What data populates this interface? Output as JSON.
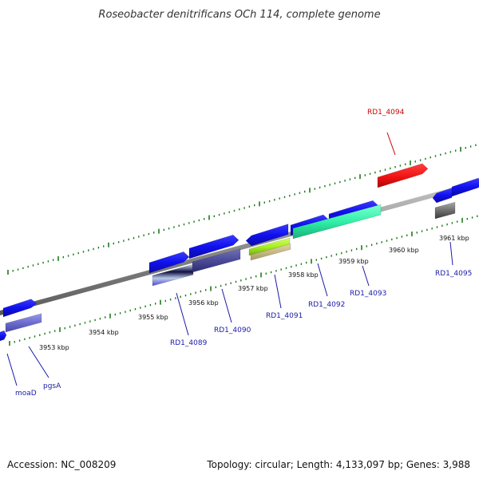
{
  "title": "Roseobacter denitrificans OCh 114, complete genome",
  "footer": {
    "accession": "Accession: NC_008209",
    "summary": "Topology: circular; Length: 4,133,097 bp; Genes: 3,988"
  },
  "colors": {
    "backbone": "#8a8a8a",
    "tick": "#1f7a1f",
    "gene_label": "#1a1aa8",
    "highlight_label": "#cc0000"
  },
  "scale_labels": [
    "3953 kbp",
    "3954 kbp",
    "3955 kbp",
    "3956 kbp",
    "3957 kbp",
    "3958 kbp",
    "3959 kbp",
    "3960 kbp",
    "3961 kbp"
  ],
  "gene_labels": [
    "moaD",
    "pgsA",
    "RD1_4089",
    "RD1_4090",
    "RD1_4091",
    "RD1_4092",
    "RD1_4093",
    "RD1_4094",
    "RD1_4095"
  ]
}
